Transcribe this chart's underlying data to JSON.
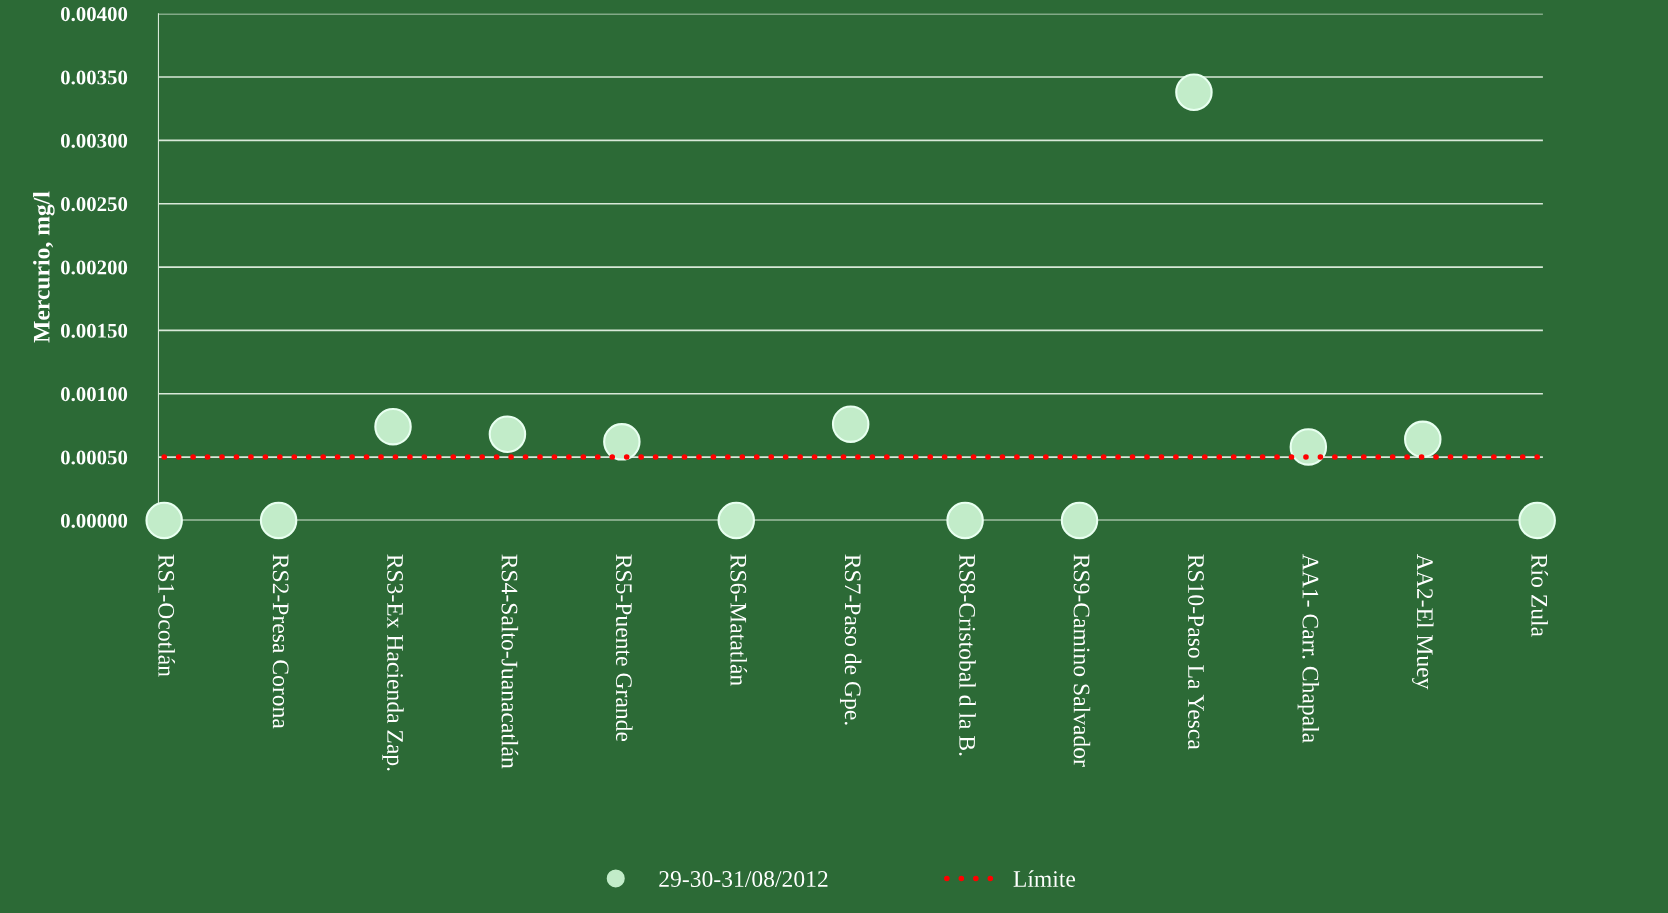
{
  "chart_data": {
    "type": "scatter",
    "ylabel": "Mercurio, mg/l",
    "categories": [
      "RS1-Ocotlán",
      "RS2-Presa Corona",
      "RS3-Ex Hacienda Zap.",
      "RS4-Salto-Juanacatlán",
      "RS5-Puente Grande",
      "RS6-Matatlán",
      "RS7-Paso de Gpe.",
      "RS8-Cristobal d la B.",
      "RS9-Camino Salvador",
      "RS10-Paso La Yesca",
      "AA1- Carr. Chapala",
      "AA2-El Muey",
      "Río Zula"
    ],
    "series": [
      {
        "name": "29-30-31/08/2012",
        "color": "#c2ecc9",
        "marker": "circle",
        "values": [
          0,
          0,
          0.00074,
          0.00068,
          0.00062,
          0,
          0.00076,
          0,
          0,
          0.00338,
          0.00058,
          0.00064,
          0
        ]
      },
      {
        "name": "Límite",
        "type": "line",
        "color": "#ff0000",
        "line_style": "dotted",
        "values": [
          0.0005,
          0.0005,
          0.0005,
          0.0005,
          0.0005,
          0.0005,
          0.0005,
          0.0005,
          0.0005,
          0.0005,
          0.0005,
          0.0005,
          0.0005
        ]
      }
    ],
    "ylim": [
      0,
      0.004
    ],
    "yticks": [
      {
        "value": 0,
        "label": "0.00000"
      },
      {
        "value": 0.0005,
        "label": "0.00050"
      },
      {
        "value": 0.001,
        "label": "0.00100"
      },
      {
        "value": 0.0015,
        "label": "0.00150"
      },
      {
        "value": 0.002,
        "label": "0.00200"
      },
      {
        "value": 0.0025,
        "label": "0.00250"
      },
      {
        "value": 0.003,
        "label": "0.00300"
      },
      {
        "value": 0.0035,
        "label": "0.00350"
      },
      {
        "value": 0.004,
        "label": "0.00400"
      }
    ],
    "grid": "y",
    "legend": "bottom"
  }
}
